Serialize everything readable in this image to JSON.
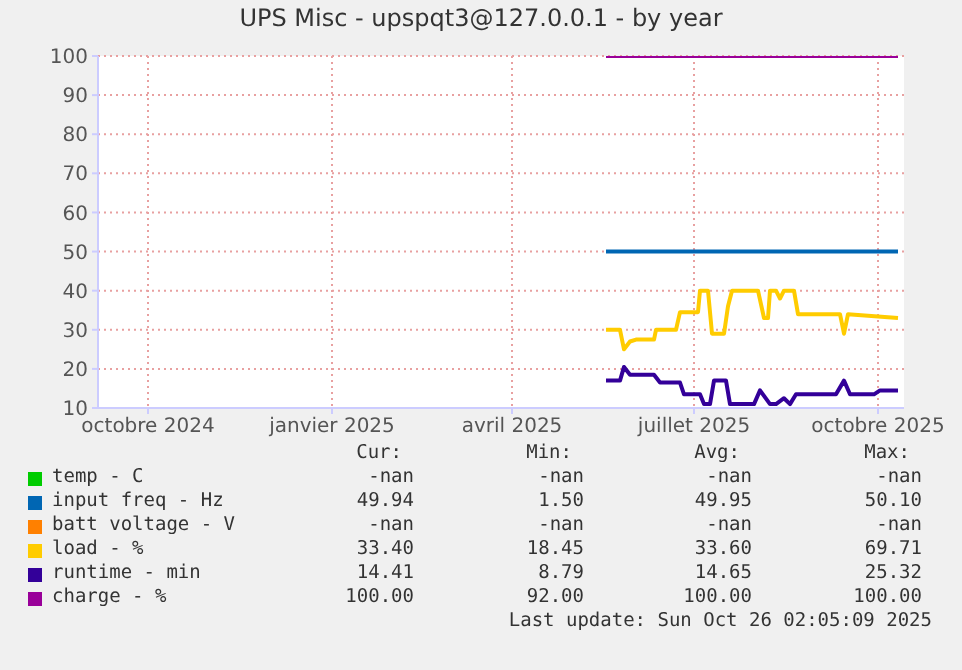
{
  "chart_data": {
    "type": "line",
    "title": "UPS Misc - upspqt3@127.0.0.1 - by year",
    "xlim": [
      "2024-09-06",
      "2025-10-14"
    ],
    "xticks": [
      {
        "value": "2024-10-01",
        "label": "octobre 2024"
      },
      {
        "value": "2025-01-01",
        "label": "janvier 2025"
      },
      {
        "value": "2025-04-01",
        "label": "avril 2025"
      },
      {
        "value": "2025-07-01",
        "label": "juillet 2025"
      },
      {
        "value": "2025-10-01",
        "label": "octobre 2025"
      }
    ],
    "ylim": [
      10,
      100
    ],
    "yticks": [
      10,
      20,
      30,
      40,
      50,
      60,
      70,
      80,
      90,
      100
    ],
    "grid": true,
    "legend": "bottom",
    "marker": "none",
    "line_style": "solid",
    "series": [
      {
        "name": "temp - C",
        "color": "#00cc00"
      },
      {
        "name": "input freq - Hz",
        "color": "#0066b3",
        "x": [
          "2025-05-18",
          "2025-10-11"
        ],
        "values": [
          50,
          50
        ]
      },
      {
        "name": "batt voltage - V",
        "color": "#ff8000"
      },
      {
        "name": "load - %",
        "color": "#ffcc00",
        "x": [
          "2025-05-18",
          "2025-05-25",
          "2025-05-27",
          "2025-05-30",
          "2025-06-02",
          "2025-06-11",
          "2025-06-12",
          "2025-06-22",
          "2025-06-24",
          "2025-07-03",
          "2025-07-04",
          "2025-07-08",
          "2025-07-10",
          "2025-07-16",
          "2025-07-18",
          "2025-07-20",
          "2025-08-02",
          "2025-08-05",
          "2025-08-07",
          "2025-08-08",
          "2025-08-11",
          "2025-08-13",
          "2025-08-15",
          "2025-08-20",
          "2025-08-22",
          "2025-09-12",
          "2025-09-14",
          "2025-09-16",
          "2025-10-11"
        ],
        "values": [
          30,
          30,
          25,
          27,
          27.5,
          27.5,
          30,
          30,
          34.5,
          34.5,
          40,
          40,
          29,
          29,
          36,
          40,
          40,
          33,
          33,
          40,
          40,
          38,
          40,
          40,
          34,
          34,
          29,
          34,
          33
        ]
      },
      {
        "name": "runtime - min",
        "color": "#330099",
        "x": [
          "2025-05-18",
          "2025-05-25",
          "2025-05-27",
          "2025-05-30",
          "2025-06-11",
          "2025-06-14",
          "2025-06-24",
          "2025-06-26",
          "2025-07-04",
          "2025-07-06",
          "2025-07-09",
          "2025-07-11",
          "2025-07-17",
          "2025-07-19",
          "2025-07-31",
          "2025-08-03",
          "2025-08-08",
          "2025-08-11",
          "2025-08-15",
          "2025-08-18",
          "2025-08-21",
          "2025-09-10",
          "2025-09-14",
          "2025-09-17",
          "2025-09-29",
          "2025-10-02",
          "2025-10-11"
        ],
        "values": [
          17,
          17,
          20.5,
          18.5,
          18.5,
          16.5,
          16.5,
          13.5,
          13.5,
          11,
          11,
          17,
          17,
          11,
          11,
          14.5,
          11,
          11,
          12.5,
          11,
          13.5,
          13.5,
          17,
          13.5,
          13.5,
          14.5,
          14.5
        ]
      },
      {
        "name": "charge - %",
        "color": "#990099",
        "x": [
          "2025-05-18",
          "2025-10-11"
        ],
        "values": [
          100,
          100
        ]
      }
    ],
    "annotations": [
      "Cur:",
      "Min:",
      "Avg:",
      "Max:",
      "-nan",
      "-nan",
      "-nan",
      "-nan",
      "49.94",
      "1.50",
      "49.95",
      "50.10",
      "-nan",
      "-nan",
      "-nan",
      "-nan",
      "33.40",
      "18.45",
      "33.60",
      "69.71",
      "14.41",
      "8.79",
      "14.65",
      "25.32",
      "100.00",
      "92.00",
      "100.00",
      "100.00",
      "Last update: Sun Oct 26 02:05:09 2025"
    ]
  }
}
